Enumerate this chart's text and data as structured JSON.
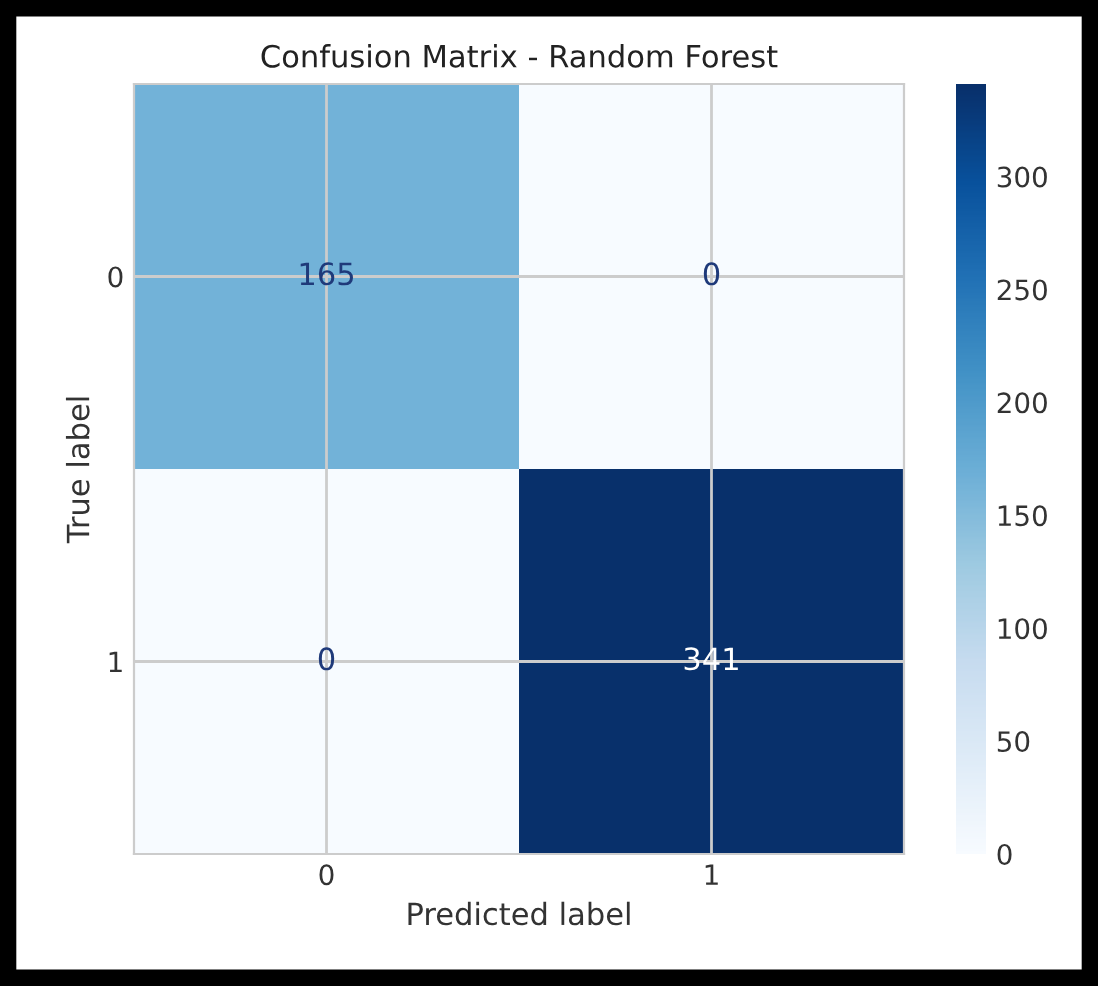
{
  "chart_data": {
    "type": "heatmap",
    "title": "Confusion Matrix - Random Forest",
    "xlabel": "Predicted label",
    "ylabel": "True label",
    "categories": [
      "0",
      "1"
    ],
    "y_categories": [
      "0",
      "1"
    ],
    "cells": [
      [
        165,
        0
      ],
      [
        0,
        341
      ]
    ],
    "clim": [
      0,
      341
    ],
    "cticks": [
      0,
      50,
      100,
      150,
      200,
      250,
      300
    ],
    "data_labels": true,
    "grid": true
  }
}
